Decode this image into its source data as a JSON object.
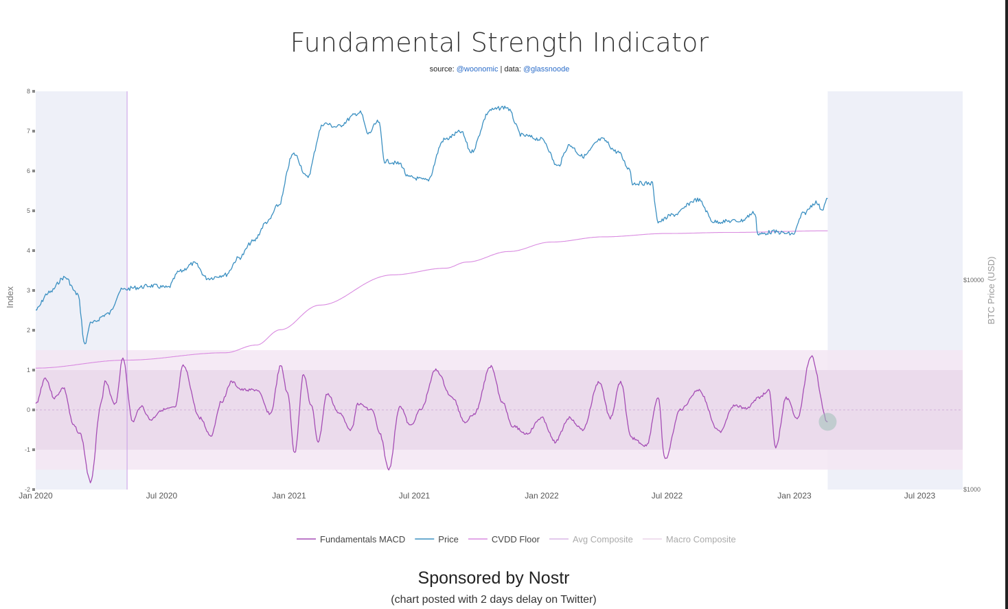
{
  "title": "Fundamental Strength Indicator",
  "source": {
    "prefix": "source: ",
    "source_link": "@woonomic",
    "separator": " | data: ",
    "data_link": "@glassnoode"
  },
  "footer": {
    "title": "Sponsored by Nostr",
    "subtitle": "(chart posted with 2 days delay on Twitter)"
  },
  "colors": {
    "price": "#3a8fc1",
    "macd": "#a54db5",
    "cvdd": "#d98ae0",
    "avg_composite": "#d9b6e6",
    "macro_composite": "#ead3e9",
    "shade_panel": "#eef0f8",
    "band_outer": "#f3e6f3",
    "band_inner": "#e9d8ea"
  },
  "chart_data": {
    "type": "line",
    "title": "Fundamental Strength Indicator",
    "xlabel": "",
    "ylabel": "Index",
    "y2label": "BTC Price (USD)",
    "ylim": [
      -2,
      8
    ],
    "y_ticks": [
      "-2",
      "-1",
      "0",
      "1",
      "2",
      "3",
      "4",
      "5",
      "6",
      "7",
      "8"
    ],
    "y2_ticks": [
      {
        "label": "$1000",
        "value": 1000
      },
      {
        "label": "$10000",
        "value": 10000
      }
    ],
    "y2_scale": "log",
    "x_ticks": [
      {
        "label": "Jan 2020",
        "date": "2020-01-01"
      },
      {
        "label": "Jul 2020",
        "date": "2020-07-01"
      },
      {
        "label": "Jan 2021",
        "date": "2021-01-01"
      },
      {
        "label": "Jul 2021",
        "date": "2021-07-01"
      },
      {
        "label": "Jan 2022",
        "date": "2022-01-01"
      },
      {
        "label": "Jul 2022",
        "date": "2022-07-01"
      },
      {
        "label": "Jan 2023",
        "date": "2023-01-01"
      },
      {
        "label": "Jul 2023",
        "date": "2023-07-01"
      }
    ],
    "x_range": [
      "2020-01-01",
      "2023-09-01"
    ],
    "bands": {
      "outer": [
        -1.5,
        1.5
      ],
      "inner": [
        -1,
        1
      ]
    },
    "shaded_ranges": [
      [
        "2020-01-01",
        "2020-05-12"
      ],
      [
        "2023-02-18",
        "2023-09-01"
      ]
    ],
    "vline_date": "2020-05-12",
    "grid": false,
    "legend_position": "bottom",
    "legend": [
      {
        "name": "Fundamentals MACD",
        "color": "#a54db5"
      },
      {
        "name": "Price",
        "color": "#3a8fc1"
      },
      {
        "name": "CVDD Floor",
        "color": "#d98ae0"
      },
      {
        "name": "Avg Composite",
        "color": "#d9b6e6"
      },
      {
        "name": "Macro Composite",
        "color": "#ead3e9"
      }
    ],
    "series": [
      {
        "name": "Price",
        "axis": "y2",
        "points": [
          [
            "2020-01-01",
            7200
          ],
          [
            "2020-01-20",
            8700
          ],
          [
            "2020-02-12",
            10300
          ],
          [
            "2020-03-01",
            8600
          ],
          [
            "2020-03-12",
            4900
          ],
          [
            "2020-03-20",
            6200
          ],
          [
            "2020-04-15",
            6900
          ],
          [
            "2020-05-05",
            9000
          ],
          [
            "2020-05-25",
            9200
          ],
          [
            "2020-06-15",
            9400
          ],
          [
            "2020-07-10",
            9200
          ],
          [
            "2020-07-27",
            11000
          ],
          [
            "2020-08-17",
            12000
          ],
          [
            "2020-09-05",
            10200
          ],
          [
            "2020-10-01",
            10600
          ],
          [
            "2020-10-21",
            12800
          ],
          [
            "2020-11-10",
            15300
          ],
          [
            "2020-12-01",
            19000
          ],
          [
            "2020-12-17",
            22800
          ],
          [
            "2021-01-08",
            40000
          ],
          [
            "2021-01-27",
            31000
          ],
          [
            "2021-02-21",
            56000
          ],
          [
            "2021-03-10",
            54000
          ],
          [
            "2021-04-14",
            63000
          ],
          [
            "2021-04-25",
            50000
          ],
          [
            "2021-05-10",
            57000
          ],
          [
            "2021-05-19",
            37000
          ],
          [
            "2021-06-10",
            36000
          ],
          [
            "2021-06-22",
            31000
          ],
          [
            "2021-07-20",
            30000
          ],
          [
            "2021-08-14",
            47000
          ],
          [
            "2021-09-06",
            51000
          ],
          [
            "2021-09-21",
            41000
          ],
          [
            "2021-10-20",
            65000
          ],
          [
            "2021-11-10",
            67000
          ],
          [
            "2021-12-04",
            49000
          ],
          [
            "2022-01-01",
            47000
          ],
          [
            "2022-01-24",
            35000
          ],
          [
            "2022-02-10",
            44000
          ],
          [
            "2022-03-01",
            39000
          ],
          [
            "2022-03-29",
            47000
          ],
          [
            "2022-04-20",
            41000
          ],
          [
            "2022-05-08",
            34000
          ],
          [
            "2022-05-12",
            29000
          ],
          [
            "2022-06-10",
            29000
          ],
          [
            "2022-06-14",
            22000
          ],
          [
            "2022-06-18",
            19000
          ],
          [
            "2022-07-10",
            20500
          ],
          [
            "2022-08-14",
            24200
          ],
          [
            "2022-09-07",
            19000
          ],
          [
            "2022-10-15",
            19200
          ],
          [
            "2022-11-05",
            21000
          ],
          [
            "2022-11-09",
            16500
          ],
          [
            "2022-12-01",
            17000
          ],
          [
            "2022-12-30",
            16600
          ],
          [
            "2023-01-14",
            20800
          ],
          [
            "2023-02-01",
            23500
          ],
          [
            "2023-02-10",
            21800
          ],
          [
            "2023-02-18",
            24500
          ]
        ]
      },
      {
        "name": "CVDD Floor",
        "axis": "y2",
        "points": [
          [
            "2020-01-01",
            3800
          ],
          [
            "2020-05-12",
            4150
          ],
          [
            "2020-10-01",
            4500
          ],
          [
            "2020-11-15",
            4900
          ],
          [
            "2020-12-20",
            5800
          ],
          [
            "2021-02-15",
            7600
          ],
          [
            "2021-06-01",
            10600
          ],
          [
            "2021-08-15",
            11400
          ],
          [
            "2021-09-15",
            12200
          ],
          [
            "2021-11-15",
            13700
          ],
          [
            "2022-01-15",
            15200
          ],
          [
            "2022-04-01",
            16100
          ],
          [
            "2022-07-01",
            16700
          ],
          [
            "2022-10-01",
            16900
          ],
          [
            "2023-02-18",
            17200
          ]
        ]
      },
      {
        "name": "Fundamentals MACD",
        "axis": "y",
        "points": [
          [
            "2020-01-01",
            0.15
          ],
          [
            "2020-01-15",
            0.8
          ],
          [
            "2020-01-28",
            0.3
          ],
          [
            "2020-02-10",
            0.55
          ],
          [
            "2020-02-25",
            -0.4
          ],
          [
            "2020-03-05",
            -0.6
          ],
          [
            "2020-03-20",
            -1.8
          ],
          [
            "2020-04-05",
            0.2
          ],
          [
            "2020-04-10",
            0.7
          ],
          [
            "2020-04-25",
            0.15
          ],
          [
            "2020-05-06",
            1.3
          ],
          [
            "2020-05-20",
            -0.3
          ],
          [
            "2020-06-01",
            0.1
          ],
          [
            "2020-06-15",
            -0.25
          ],
          [
            "2020-07-01",
            0.0
          ],
          [
            "2020-07-20",
            0.05
          ],
          [
            "2020-08-01",
            1.1
          ],
          [
            "2020-08-25",
            -0.2
          ],
          [
            "2020-09-10",
            -0.65
          ],
          [
            "2020-09-25",
            0.2
          ],
          [
            "2020-10-10",
            0.7
          ],
          [
            "2020-10-25",
            0.5
          ],
          [
            "2020-11-15",
            0.5
          ],
          [
            "2020-12-05",
            -0.1
          ],
          [
            "2020-12-20",
            1.1
          ],
          [
            "2020-12-30",
            0.4
          ],
          [
            "2021-01-09",
            -1.1
          ],
          [
            "2021-01-22",
            0.9
          ],
          [
            "2021-02-02",
            0.1
          ],
          [
            "2021-02-12",
            -0.8
          ],
          [
            "2021-02-25",
            0.4
          ],
          [
            "2021-03-15",
            -0.1
          ],
          [
            "2021-04-01",
            -0.5
          ],
          [
            "2021-04-10",
            0.15
          ],
          [
            "2021-05-01",
            0.0
          ],
          [
            "2021-05-12",
            -0.6
          ],
          [
            "2021-05-25",
            -1.5
          ],
          [
            "2021-06-10",
            0.1
          ],
          [
            "2021-06-25",
            -0.4
          ],
          [
            "2021-07-10",
            0.0
          ],
          [
            "2021-08-01",
            1.0
          ],
          [
            "2021-08-25",
            0.3
          ],
          [
            "2021-09-12",
            -0.3
          ],
          [
            "2021-09-25",
            -0.1
          ],
          [
            "2021-10-20",
            1.1
          ],
          [
            "2021-11-05",
            0.2
          ],
          [
            "2021-11-20",
            -0.4
          ],
          [
            "2021-12-10",
            -0.6
          ],
          [
            "2022-01-01",
            -0.2
          ],
          [
            "2022-01-20",
            -0.8
          ],
          [
            "2022-02-10",
            -0.2
          ],
          [
            "2022-03-01",
            -0.5
          ],
          [
            "2022-03-25",
            0.7
          ],
          [
            "2022-04-10",
            -0.2
          ],
          [
            "2022-04-25",
            0.7
          ],
          [
            "2022-05-10",
            -0.7
          ],
          [
            "2022-06-01",
            -0.9
          ],
          [
            "2022-06-18",
            0.3
          ],
          [
            "2022-06-28",
            -1.25
          ],
          [
            "2022-07-20",
            0.0
          ],
          [
            "2022-08-15",
            0.5
          ],
          [
            "2022-09-15",
            -0.55
          ],
          [
            "2022-10-05",
            0.1
          ],
          [
            "2022-10-25",
            0.05
          ],
          [
            "2022-11-10",
            0.3
          ],
          [
            "2022-11-25",
            0.5
          ],
          [
            "2022-12-05",
            -0.95
          ],
          [
            "2022-12-20",
            0.3
          ],
          [
            "2023-01-05",
            -0.2
          ],
          [
            "2023-01-25",
            1.35
          ],
          [
            "2023-02-18",
            -0.3
          ]
        ]
      },
      {
        "name": "Avg Composite",
        "axis": "y",
        "points": []
      },
      {
        "name": "Macro Composite",
        "axis": "y",
        "points": []
      }
    ]
  }
}
